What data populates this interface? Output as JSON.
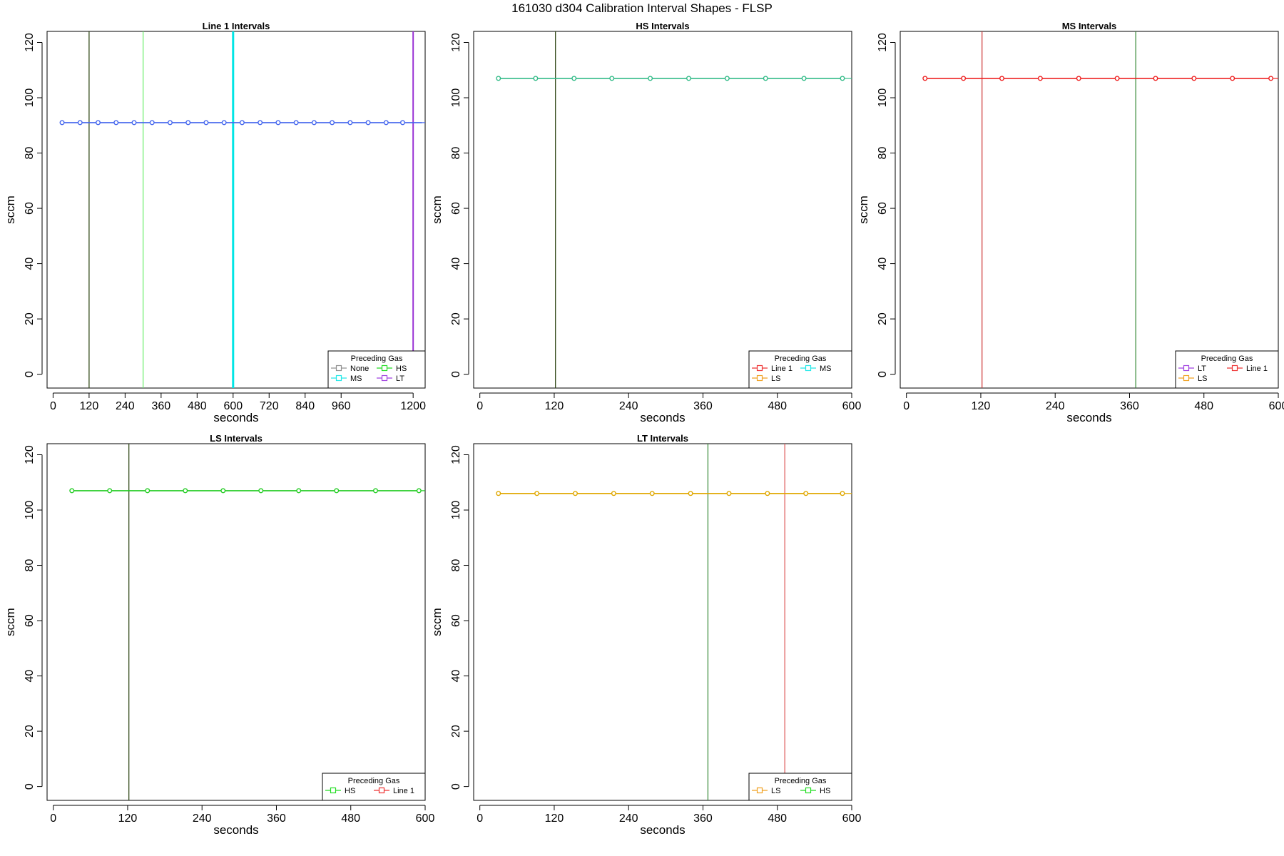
{
  "page_title": "161030   d304   Calibration Interval Shapes - FLSP",
  "chart_data": [
    {
      "type": "line",
      "title": "Line 1 Intervals",
      "xlabel": "seconds",
      "ylabel": "sccm",
      "xlim": [
        -20,
        1240
      ],
      "ylim": [
        -5,
        124
      ],
      "xticks": [
        0,
        120,
        240,
        360,
        480,
        600,
        720,
        840,
        960,
        1200
      ],
      "yticks": [
        0,
        20,
        40,
        60,
        80,
        100,
        120
      ],
      "grid": false,
      "legend": {
        "title": "Preceding Gas",
        "position": "bottom-right",
        "columns": 2,
        "entries": [
          {
            "name": "None",
            "color": "#909090"
          },
          {
            "name": "HS",
            "color": "#22dd22"
          },
          {
            "name": "MS",
            "color": "#22e8e8"
          },
          {
            "name": "LT",
            "color": "#a040e0"
          }
        ]
      },
      "vlines": [
        {
          "x": 120,
          "color": "#334a1a",
          "width": 1.3
        },
        {
          "x": 300,
          "color": "#66ee66",
          "width": 1.2
        },
        {
          "x": 600,
          "color": "#00e5e5",
          "width": 3
        },
        {
          "x": 1200,
          "color": "#9a35d5",
          "width": 2
        }
      ],
      "series": [
        {
          "color": "#4466ee",
          "values_y": 91,
          "x": [
            30,
            90,
            150,
            210,
            270,
            330,
            390,
            450,
            510,
            570,
            630,
            690,
            750,
            810,
            870,
            930,
            990,
            1050,
            1110,
            1170,
            1230
          ],
          "marker_x": [
            30,
            90,
            150,
            210,
            270,
            330,
            390,
            450,
            510,
            570,
            630,
            690,
            750,
            810,
            870,
            930,
            990,
            1050,
            1110,
            1165
          ]
        }
      ]
    },
    {
      "type": "line",
      "title": "HS Intervals",
      "xlabel": "seconds",
      "ylabel": "sccm",
      "xlim": [
        -10,
        600
      ],
      "ylim": [
        -5,
        124
      ],
      "xticks": [
        0,
        120,
        240,
        360,
        480,
        600
      ],
      "yticks": [
        0,
        20,
        40,
        60,
        80,
        100,
        120
      ],
      "grid": false,
      "legend": {
        "title": "Preceding Gas",
        "position": "bottom-right",
        "columns": 2,
        "entries": [
          {
            "name": "Line 1",
            "color": "#ee3333"
          },
          {
            "name": "MS",
            "color": "#22e8e8"
          },
          {
            "name": "LS",
            "color": "#f0a020"
          }
        ]
      },
      "vlines": [
        {
          "x": 122,
          "color": "#334a1a",
          "width": 1.3
        }
      ],
      "series": [
        {
          "color": "#33bb88",
          "values_y": 107,
          "x": [
            30,
            90,
            150,
            212,
            273,
            335,
            397,
            459,
            521,
            585
          ],
          "marker_x": [
            30,
            90,
            152,
            213,
            275,
            337,
            399,
            461,
            523,
            585
          ]
        }
      ]
    },
    {
      "type": "line",
      "title": "MS Intervals",
      "xlabel": "seconds",
      "ylabel": "sccm",
      "xlim": [
        -10,
        600
      ],
      "ylim": [
        -5,
        124
      ],
      "xticks": [
        0,
        120,
        240,
        360,
        480,
        600
      ],
      "yticks": [
        0,
        20,
        40,
        60,
        80,
        100,
        120
      ],
      "grid": false,
      "legend": {
        "title": "Preceding Gas",
        "position": "bottom-right",
        "columns": 2,
        "entries": [
          {
            "name": "LT",
            "color": "#a040e0"
          },
          {
            "name": "Line 1",
            "color": "#ee3333"
          },
          {
            "name": "LS",
            "color": "#f0a020"
          }
        ]
      },
      "vlines": [
        {
          "x": 122,
          "color": "#cc3333",
          "width": 1.2
        },
        {
          "x": 370,
          "color": "#338833",
          "width": 1.2
        }
      ],
      "series": [
        {
          "color": "#ee2222",
          "values_y": 107,
          "x": [
            30,
            92,
            154,
            216,
            278,
            340,
            402,
            464,
            526,
            588
          ],
          "marker_x": [
            30,
            92,
            154,
            216,
            278,
            340,
            402,
            464,
            526,
            588
          ]
        }
      ]
    },
    {
      "type": "line",
      "title": "LS Intervals",
      "xlabel": "seconds",
      "ylabel": "sccm",
      "xlim": [
        -10,
        600
      ],
      "ylim": [
        -5,
        124
      ],
      "xticks": [
        0,
        120,
        240,
        360,
        480,
        600
      ],
      "yticks": [
        0,
        20,
        40,
        60,
        80,
        100,
        120
      ],
      "grid": false,
      "legend": {
        "title": "Preceding Gas",
        "position": "bottom-right",
        "columns": 2,
        "entries": [
          {
            "name": "HS",
            "color": "#22dd22"
          },
          {
            "name": "Line 1",
            "color": "#ee3333"
          }
        ]
      },
      "vlines": [
        {
          "x": 122,
          "color": "#334a1a",
          "width": 1.3
        }
      ],
      "series": [
        {
          "color": "#22cc22",
          "values_y": 107,
          "x": [
            30,
            91,
            152,
            213,
            274,
            335,
            396,
            457,
            518,
            590
          ],
          "marker_x": [
            30,
            91,
            152,
            213,
            274,
            335,
            396,
            457,
            520,
            590
          ]
        }
      ]
    },
    {
      "type": "line",
      "title": "LT Intervals",
      "xlabel": "seconds",
      "ylabel": "sccm",
      "xlim": [
        -10,
        600
      ],
      "ylim": [
        -5,
        124
      ],
      "xticks": [
        0,
        120,
        240,
        360,
        480,
        600
      ],
      "yticks": [
        0,
        20,
        40,
        60,
        80,
        100,
        120
      ],
      "grid": false,
      "legend": {
        "title": "Preceding Gas",
        "position": "bottom-right",
        "columns": 2,
        "entries": [
          {
            "name": "LS",
            "color": "#f0a020"
          },
          {
            "name": "HS",
            "color": "#22dd22"
          }
        ]
      },
      "vlines": [
        {
          "x": 368,
          "color": "#338833",
          "width": 1.2
        },
        {
          "x": 492,
          "color": "#dd5555",
          "width": 1.2
        }
      ],
      "series": [
        {
          "color": "#e0a800",
          "values_y": 106,
          "x": [
            30,
            92,
            154,
            216,
            278,
            340,
            402,
            464,
            526,
            585
          ],
          "marker_x": [
            30,
            92,
            154,
            216,
            278,
            340,
            402,
            464,
            526,
            585
          ]
        }
      ]
    }
  ]
}
